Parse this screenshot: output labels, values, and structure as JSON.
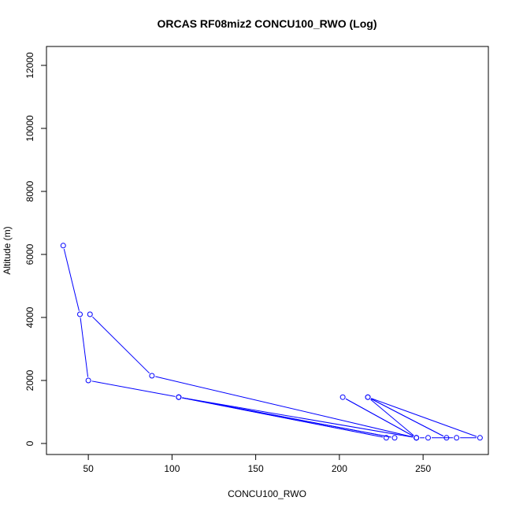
{
  "chart_data": {
    "type": "line",
    "title": "ORCAS RF08miz2 CONCU100_RWO (Log)",
    "xlabel": "CONCU100_RWO",
    "ylabel": "Altitude (m)",
    "xlim": [
      25,
      289
    ],
    "ylim": [
      -350,
      12600
    ],
    "xticks": [
      50,
      100,
      150,
      200,
      250
    ],
    "yticks": [
      0,
      2000,
      4000,
      6000,
      8000,
      10000,
      12000
    ],
    "grid": false,
    "series": [
      {
        "color": "#0000ff",
        "marker": "open-circle",
        "x": [
          35,
          45,
          50,
          104,
          228,
          104,
          233,
          104,
          246,
          202,
          246,
          217,
          264,
          217,
          284,
          270,
          253,
          246,
          88,
          51
        ],
        "y": [
          6280,
          4100,
          2000,
          1470,
          180,
          1470,
          180,
          1470,
          180,
          1470,
          180,
          1470,
          180,
          1470,
          180,
          180,
          180,
          180,
          2150,
          4100
        ]
      }
    ]
  }
}
